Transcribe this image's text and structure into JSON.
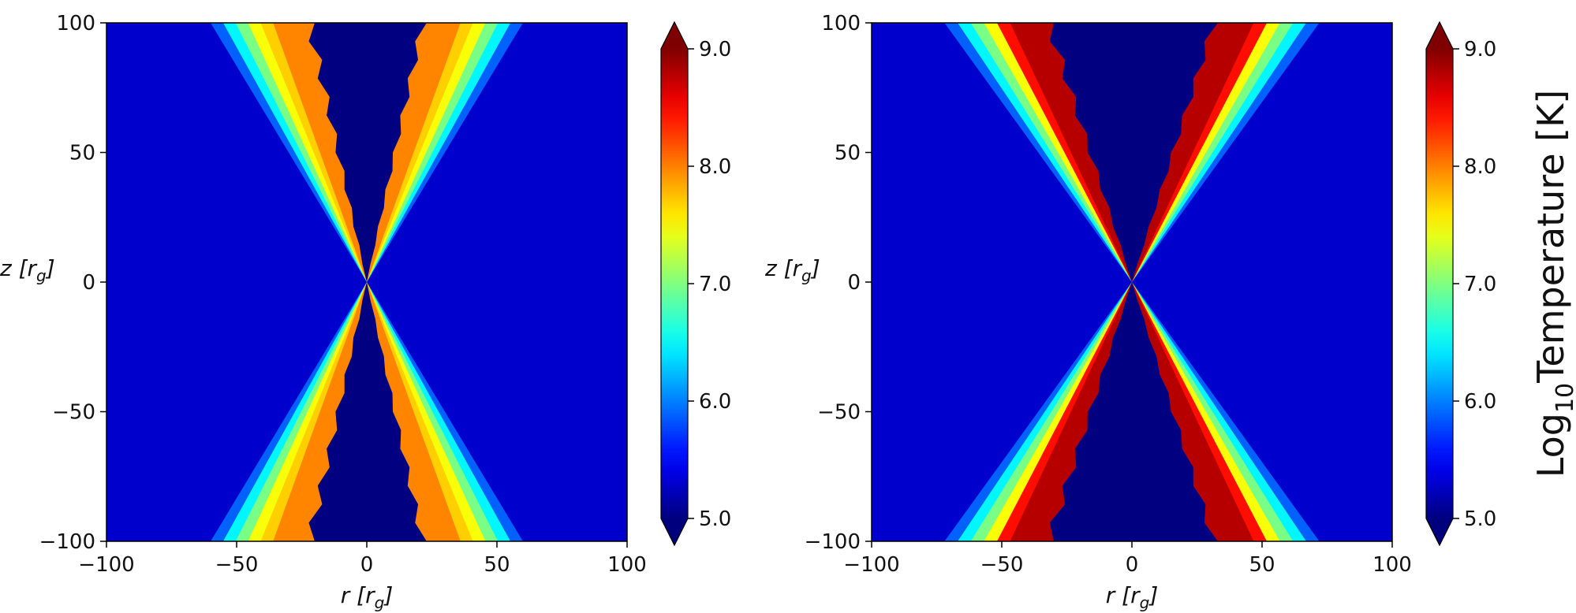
{
  "chart_data": [
    {
      "type": "heatmap",
      "xlabel": {
        "var": "r",
        "unit": "r",
        "unit_sub": "g"
      },
      "ylabel": {
        "var": "z",
        "unit": "r",
        "unit_sub": "g"
      },
      "xlim": [
        -100,
        100
      ],
      "ylim": [
        -100,
        100
      ],
      "xticks": [
        -100,
        -50,
        0,
        50,
        100
      ],
      "yticks": [
        -100,
        -50,
        0,
        50,
        100
      ],
      "xtick_labels": [
        "−100",
        "−50",
        "0",
        "50",
        "100"
      ],
      "ytick_labels": [
        "−100",
        "−50",
        "0",
        "50",
        "100"
      ],
      "colorbar": {
        "min": 5.0,
        "max": 9.0,
        "ticks": [
          5.0,
          6.0,
          7.0,
          8.0,
          9.0
        ],
        "tick_labels": [
          "5.0",
          "6.0",
          "7.0",
          "8.0",
          "9.0"
        ],
        "extend": "both",
        "colormap": "jet"
      },
      "structure": {
        "inner_funnel_value": 5.0,
        "background_value": 5.3,
        "sheath_peak_value": 8.0,
        "funnel_half_width_at_top": 20,
        "sheath_outer_half_width_at_top": 60,
        "jagged_funnel_boundary": true
      },
      "grid": false
    },
    {
      "type": "heatmap",
      "xlabel": {
        "var": "r",
        "unit": "r",
        "unit_sub": "g"
      },
      "ylabel": {
        "var": "z",
        "unit": "r",
        "unit_sub": "g"
      },
      "xlim": [
        -100,
        100
      ],
      "ylim": [
        -100,
        100
      ],
      "xticks": [
        -100,
        -50,
        0,
        50,
        100
      ],
      "yticks": [
        -100,
        -50,
        0,
        50,
        100
      ],
      "xtick_labels": [
        "−100",
        "−50",
        "0",
        "50",
        "100"
      ],
      "ytick_labels": [
        "−100",
        "−50",
        "0",
        "50",
        "100"
      ],
      "colorbar": {
        "min": 5.0,
        "max": 9.0,
        "ticks": [
          5.0,
          6.0,
          7.0,
          8.0,
          9.0
        ],
        "tick_labels": [
          "5.0",
          "6.0",
          "7.0",
          "8.0",
          "9.0"
        ],
        "extend": "both",
        "colormap": "jet",
        "title": "Log",
        "title_sub": "10",
        "title_rest": "Temperature [K]"
      },
      "structure": {
        "inner_funnel_value": 5.0,
        "background_value": 5.3,
        "sheath_peak_value": 8.8,
        "funnel_half_width_at_top": 30,
        "sheath_outer_half_width_at_top": 72,
        "jagged_funnel_boundary": true
      },
      "grid": false
    }
  ]
}
